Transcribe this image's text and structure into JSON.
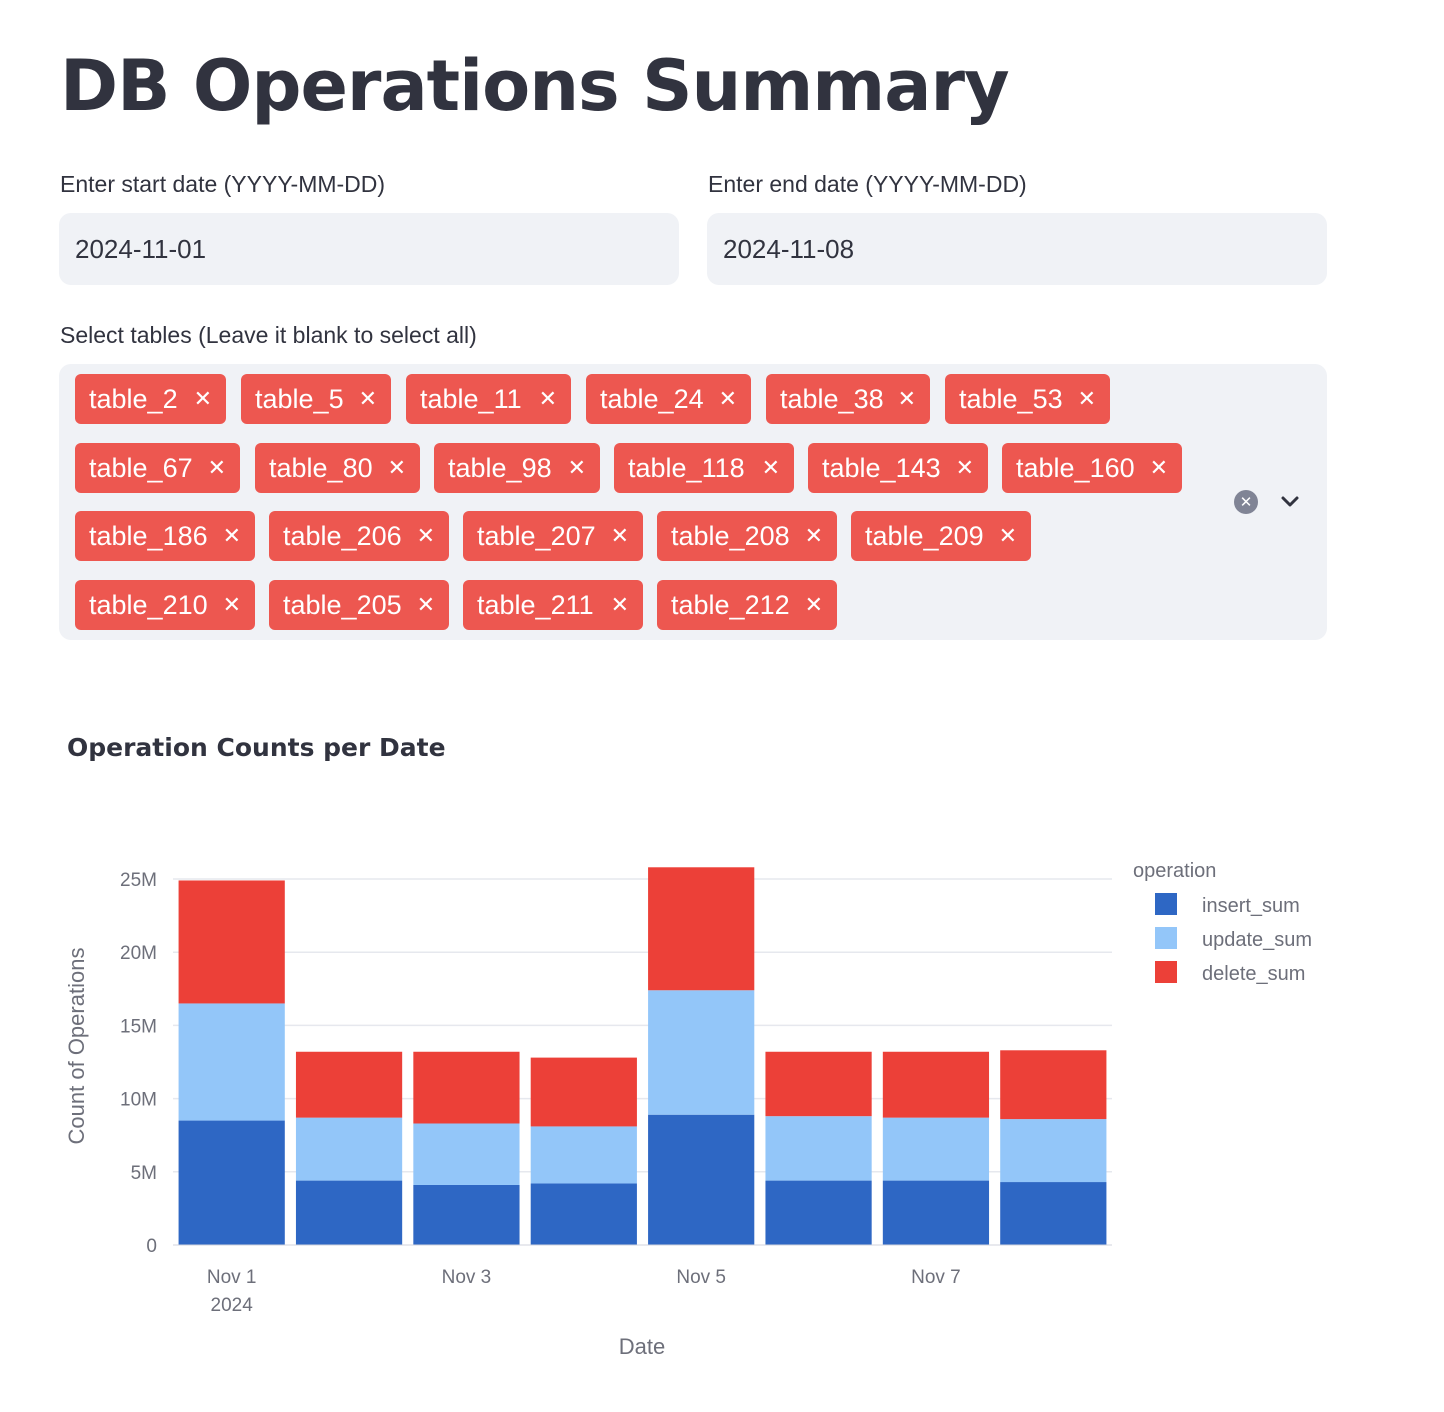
{
  "page": {
    "title": "DB Operations Summary"
  },
  "start_date": {
    "label": "Enter start date (YYYY-MM-DD)",
    "value": "2024-11-01"
  },
  "end_date": {
    "label": "Enter end date (YYYY-MM-DD)",
    "value": "2024-11-08"
  },
  "tables_select": {
    "label": "Select tables (Leave it blank to select all)",
    "selected": [
      "table_2",
      "table_5",
      "table_11",
      "table_24",
      "table_38",
      "table_53",
      "table_67",
      "table_80",
      "table_98",
      "table_118",
      "table_143",
      "table_160",
      "table_186",
      "table_206",
      "table_207",
      "table_208",
      "table_209",
      "table_210",
      "table_205",
      "table_211",
      "table_212"
    ],
    "clear_icon": "clear-circle-icon",
    "dropdown_icon": "chevron-down-icon"
  },
  "chart": {
    "title": "Operation Counts per Date"
  },
  "chart_data": {
    "type": "bar",
    "stacked": true,
    "x": [
      "2024-11-01",
      "2024-11-02",
      "2024-11-03",
      "2024-11-04",
      "2024-11-05",
      "2024-11-06",
      "2024-11-07",
      "2024-11-08"
    ],
    "x_tick_labels": [
      {
        "date": "2024-11-01",
        "label": "Nov 1",
        "sublabel": "2024"
      },
      {
        "date": "2024-11-03",
        "label": "Nov 3"
      },
      {
        "date": "2024-11-05",
        "label": "Nov 5"
      },
      {
        "date": "2024-11-07",
        "label": "Nov 7"
      }
    ],
    "series": [
      {
        "name": "insert_sum",
        "color": "#2e67c4",
        "values": [
          8500000,
          4400000,
          4100000,
          4200000,
          8900000,
          4400000,
          4400000,
          4300000
        ]
      },
      {
        "name": "update_sum",
        "color": "#93c6f9",
        "values": [
          8000000,
          4300000,
          4200000,
          3900000,
          8500000,
          4400000,
          4300000,
          4300000
        ]
      },
      {
        "name": "delete_sum",
        "color": "#ec4038",
        "values": [
          8400000,
          4500000,
          4900000,
          4700000,
          8400000,
          4400000,
          4500000,
          4700000
        ]
      }
    ],
    "xlabel": "Date",
    "ylabel": "Count of Operations",
    "ylim": [
      0,
      25000000
    ],
    "y_ticks": [
      {
        "value": 0,
        "label": "0"
      },
      {
        "value": 5000000,
        "label": "5M"
      },
      {
        "value": 10000000,
        "label": "10M"
      },
      {
        "value": 15000000,
        "label": "15M"
      },
      {
        "value": 20000000,
        "label": "20M"
      },
      {
        "value": 25000000,
        "label": "25M"
      }
    ],
    "legend_title": "operation",
    "legend_position": "top-right",
    "grid": true
  }
}
